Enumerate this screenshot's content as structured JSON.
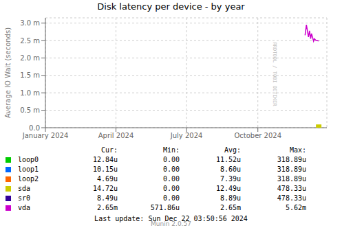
{
  "chart_data": {
    "type": "line",
    "title": "Disk latency per device - by year",
    "ylabel": "Average IO Wait (seconds)",
    "xlim": [
      1704067200,
      1735430000
    ],
    "xticks": [
      {
        "value": 1704067200,
        "label": "January 2024"
      },
      {
        "value": 1711929600,
        "label": "April 2024"
      },
      {
        "value": 1719792000,
        "label": "July 2024"
      },
      {
        "value": 1727740800,
        "label": "October 2024"
      }
    ],
    "ylim": [
      0,
      0.00315
    ],
    "yticks": [
      {
        "value": 0.0,
        "label": "0.0"
      },
      {
        "value": 0.0005,
        "label": "0.5 m"
      },
      {
        "value": 0.001,
        "label": "1.0 m"
      },
      {
        "value": 0.0015,
        "label": "1.5 m"
      },
      {
        "value": 0.002,
        "label": "2.0 m"
      },
      {
        "value": 0.0025,
        "label": "2.5 m"
      },
      {
        "value": 0.003,
        "label": "3.0 m"
      }
    ],
    "grid": true,
    "series": [
      {
        "name": "loop0",
        "color": "#00cc00"
      },
      {
        "name": "loop1",
        "color": "#0066ff"
      },
      {
        "name": "loop2",
        "color": "#ff6600"
      },
      {
        "name": "sda",
        "color": "#cccc00",
        "type": "scatter",
        "marker": "square",
        "x": [
          1734520000
        ],
        "values": [
          1.5e-05
        ]
      },
      {
        "name": "sr0",
        "color": "#330099"
      },
      {
        "name": "vda",
        "color": "#cc00cc",
        "type": "line",
        "x": [
          1733000000,
          1733150000,
          1733250000,
          1733380000,
          1733500000,
          1733620000,
          1733720000,
          1733850000,
          1733950000,
          1734050000,
          1734150000,
          1734250000,
          1734350000,
          1734450000,
          1734520000
        ],
        "values": [
          0.00265,
          0.00295,
          0.0028,
          0.0026,
          0.00278,
          0.00255,
          0.0027,
          0.00258,
          0.00248,
          0.00255,
          0.00252,
          0.0025,
          0.0025,
          0.00249,
          0.00249
        ]
      }
    ],
    "table": {
      "headers": [
        "Cur:",
        "Min:",
        "Avg:",
        "Max:"
      ],
      "rows": [
        [
          "12.84u",
          "0.00",
          "11.52u",
          "318.89u"
        ],
        [
          "10.15u",
          "0.00",
          "8.60u",
          "318.89u"
        ],
        [
          "4.69u",
          "0.00",
          "7.39u",
          "318.89u"
        ],
        [
          "14.72u",
          "0.00",
          "12.49u",
          "478.33u"
        ],
        [
          "8.49u",
          "0.00",
          "8.89u",
          "478.33u"
        ],
        [
          "2.65m",
          "571.86u",
          "2.65m",
          "5.62m"
        ]
      ]
    },
    "watermark": "RRDTOOL / TOBI OETIKER",
    "last_update": "Last update: Sun Dec 22 03:50:56 2024",
    "footer": "Munin 2.0.57"
  }
}
